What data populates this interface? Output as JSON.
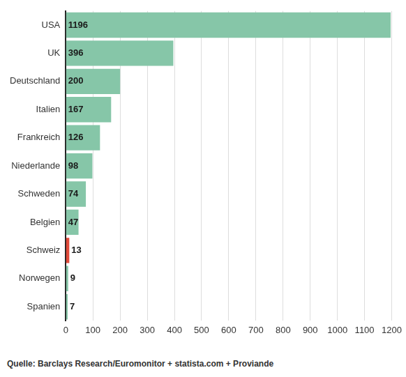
{
  "chart_data": {
    "type": "bar",
    "orientation": "horizontal",
    "categories": [
      "USA",
      "UK",
      "Deutschland",
      "Italien",
      "Frankreich",
      "Niederlande",
      "Schweden",
      "Belgien",
      "Schweiz",
      "Norwegen",
      "Spanien"
    ],
    "values": [
      1196,
      396,
      200,
      167,
      126,
      98,
      74,
      47,
      13,
      9,
      7
    ],
    "colors": [
      "#86c6a8",
      "#86c6a8",
      "#86c6a8",
      "#86c6a8",
      "#86c6a8",
      "#86c6a8",
      "#86c6a8",
      "#86c6a8",
      "#e04a3a",
      "#86c6a8",
      "#86c6a8"
    ],
    "xlim": [
      0,
      1200
    ],
    "xticks": [
      0,
      100,
      200,
      300,
      400,
      500,
      600,
      700,
      800,
      900,
      1000,
      1100,
      1200
    ],
    "grid": true,
    "data_labels": true,
    "source": "Quelle: Barclays Research/Euromonitor + statista.com + Proviande"
  }
}
